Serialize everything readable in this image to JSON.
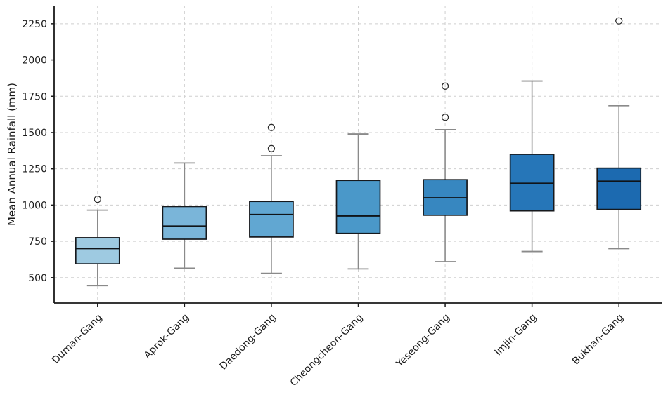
{
  "chart_data": {
    "type": "boxplot",
    "title": "",
    "xlabel": "",
    "ylabel": "Mean Annual Rainfall (mm)",
    "categories": [
      "Duman-Gang",
      "Aprok-Gang",
      "Daedong-Gang",
      "Cheongcheon-Gang",
      "Yeseong-Gang",
      "Imjin-Gang",
      "Bukhan-Gang"
    ],
    "yticks": [
      500,
      750,
      1000,
      1250,
      1500,
      1750,
      2000,
      2250
    ],
    "ylim": [
      325,
      2375
    ],
    "grid": {
      "horizontal": true,
      "vertical": true,
      "style": "dashed"
    },
    "legend": "none",
    "series": [
      {
        "name": "Duman-Gang",
        "whislo": 445,
        "q1": 595,
        "median": 700,
        "q3": 775,
        "whishi": 965,
        "fliers": [
          1040
        ],
        "color": "#9ecae1"
      },
      {
        "name": "Aprok-Gang",
        "whislo": 565,
        "q1": 765,
        "median": 855,
        "q3": 990,
        "whishi": 1290,
        "fliers": [],
        "color": "#7ab5d9"
      },
      {
        "name": "Daedong-Gang",
        "whislo": 530,
        "q1": 780,
        "median": 935,
        "q3": 1025,
        "whishi": 1340,
        "fliers": [
          1390,
          1535
        ],
        "color": "#61a7d2"
      },
      {
        "name": "Cheongcheon-Gang",
        "whislo": 560,
        "q1": 805,
        "median": 925,
        "q3": 1170,
        "whishi": 1490,
        "fliers": [],
        "color": "#4a98c9"
      },
      {
        "name": "Yeseong-Gang",
        "whislo": 610,
        "q1": 930,
        "median": 1050,
        "q3": 1175,
        "whishi": 1520,
        "fliers": [
          1605,
          1820
        ],
        "color": "#3787c0"
      },
      {
        "name": "Imjin-Gang",
        "whislo": 680,
        "q1": 960,
        "median": 1150,
        "q3": 1350,
        "whishi": 1855,
        "fliers": [],
        "color": "#2676b8"
      },
      {
        "name": "Bukhan-Gang",
        "whislo": 700,
        "q1": 970,
        "median": 1165,
        "q3": 1255,
        "whishi": 1685,
        "fliers": [
          2270
        ],
        "color": "#1c6ab0"
      }
    ],
    "colors": {
      "background": "#ffffff",
      "grid": "#cfcfcf",
      "axis": "#1a1a1a",
      "text": "#1a1a1a",
      "box_edge": "#16191d",
      "median": "#101418",
      "whisker": "#8a8a8a",
      "flier_edge": "#2b2b2b"
    }
  }
}
